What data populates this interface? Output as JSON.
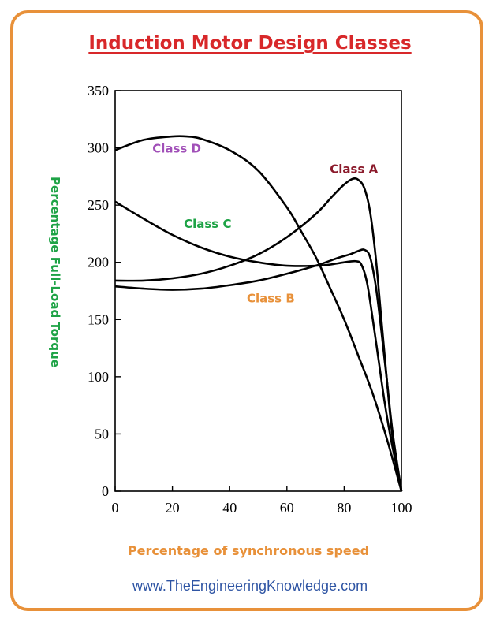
{
  "title": "Induction Motor Design Classes",
  "footer": "www.TheEngineeringKnowledge.com",
  "colors": {
    "frame": "#e8913a",
    "title": "#d8282a",
    "ylabel": "#1ea346",
    "xlabel": "#e8913a",
    "footer": "#2f55a4",
    "curve": "#000000"
  },
  "chart_data": {
    "type": "line",
    "title": "Induction Motor Design Classes",
    "xlabel": "Percentage of synchronous speed",
    "ylabel": "Percentage Full-Load Torque",
    "xlim": [
      0,
      100
    ],
    "ylim": [
      0,
      350
    ],
    "xticks": [
      0,
      20,
      40,
      60,
      80,
      100
    ],
    "yticks": [
      0,
      50,
      100,
      150,
      200,
      250,
      300,
      350
    ],
    "grid": false,
    "legend": "none",
    "series": [
      {
        "name": "Class A",
        "color": "#8b1a2b",
        "x": [
          0,
          10,
          20,
          30,
          40,
          50,
          60,
          70,
          76,
          80,
          83,
          85,
          87,
          89,
          91,
          93,
          95,
          97,
          100
        ],
        "y": [
          184,
          184,
          186,
          190,
          197,
          207,
          222,
          242,
          258,
          268,
          273,
          272,
          265,
          245,
          205,
          150,
          95,
          45,
          0
        ]
      },
      {
        "name": "Class B",
        "color": "#e8913a",
        "x": [
          0,
          10,
          20,
          30,
          40,
          50,
          60,
          70,
          78,
          82,
          85,
          87,
          89,
          91,
          93,
          95,
          97,
          100
        ],
        "y": [
          179,
          177,
          176,
          177,
          180,
          184,
          190,
          197,
          204,
          207,
          210,
          211,
          205,
          180,
          140,
          95,
          50,
          0
        ]
      },
      {
        "name": "Class C",
        "color": "#1ea346",
        "x": [
          0,
          10,
          20,
          30,
          40,
          50,
          60,
          70,
          75,
          80,
          84,
          86,
          88,
          90,
          92,
          94,
          96,
          98,
          100
        ],
        "y": [
          253,
          238,
          224,
          213,
          205,
          200,
          197,
          197,
          198,
          200,
          201,
          198,
          182,
          150,
          115,
          80,
          50,
          25,
          0
        ]
      },
      {
        "name": "Class D",
        "color": "#a150b8",
        "x": [
          0,
          10,
          20,
          25,
          30,
          40,
          50,
          60,
          65,
          70,
          75,
          80,
          85,
          90,
          95,
          100
        ],
        "y": [
          298,
          307,
          310,
          310,
          308,
          298,
          280,
          248,
          227,
          205,
          178,
          150,
          118,
          85,
          45,
          0
        ]
      }
    ],
    "annotations": [
      {
        "text": "Class D",
        "series": "Class D",
        "x": 13,
        "y": 296
      },
      {
        "text": "Class A",
        "series": "Class A",
        "x": 75,
        "y": 278
      },
      {
        "text": "Class C",
        "series": "Class C",
        "x": 24,
        "y": 230
      },
      {
        "text": "Class B",
        "series": "Class B",
        "x": 46,
        "y": 165
      }
    ]
  }
}
